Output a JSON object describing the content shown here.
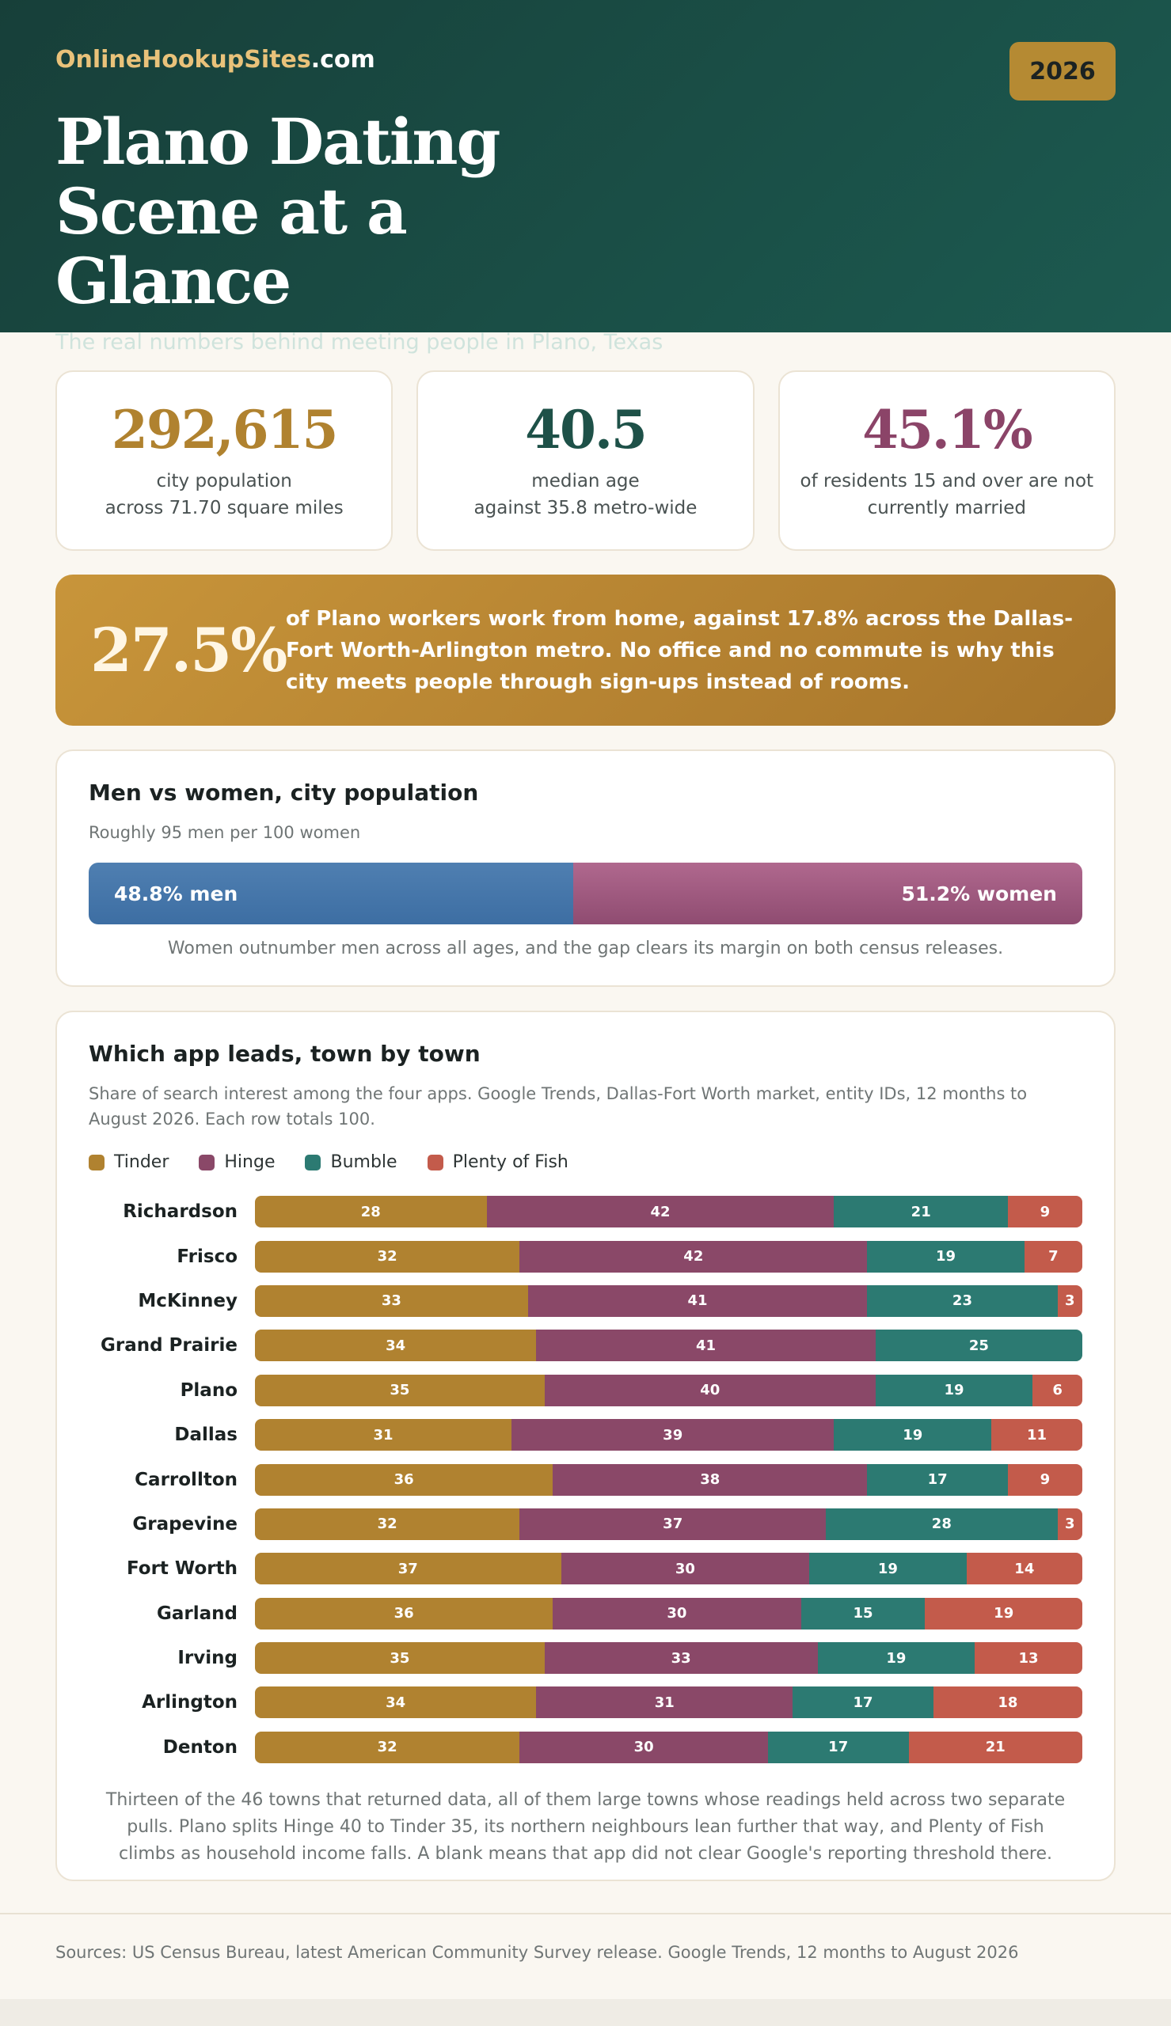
{
  "header": {
    "brand_main": "OnlineHookupSites",
    "brand_suffix": ".com",
    "year": "2026",
    "title": "Plano Dating Scene at a Glance",
    "subtitle": "The real numbers behind meeting people in Plano, Texas"
  },
  "stats": [
    {
      "value": "292,615",
      "line1": "city population",
      "line2": "across 71.70 square miles",
      "color": "#b0822f"
    },
    {
      "value": "40.5",
      "line1": "median age",
      "line2": "against 35.8 metro-wide",
      "color": "#1e5148"
    },
    {
      "value": "45.1%",
      "line1": "of residents 15 and over are not",
      "line2": "currently married",
      "color": "#8b4468"
    }
  ],
  "highlight": {
    "value": "27.5%",
    "text": "of Plano workers work from home, against 17.8% across the Dallas-Fort Worth-Arlington metro. No office and no commute is why this city meets people through sign-ups instead of rooms."
  },
  "gender": {
    "title": "Men vs women, city population",
    "subtitle": "Roughly 95 men per 100 women",
    "men_pct": 48.8,
    "women_pct": 51.2,
    "men_label": "48.8% men",
    "women_label": "51.2% women",
    "note": "Women outnumber men across all ages, and the gap clears its margin on both census releases."
  },
  "apps": {
    "title": "Which app leads, town by town",
    "subtitle": "Share of search interest among the four apps. Google Trends, Dallas-Fort Worth market, entity IDs, 12 months to August 2026. Each row totals 100.",
    "note": "Thirteen of the 46 towns that returned data, all of them large towns whose readings held across two separate pulls. Plano splits Hinge 40 to Tinder 35, its northern neighbours lean further that way, and Plenty of Fish climbs as household income falls. A blank means that app did not clear Google's reporting threshold there."
  },
  "chart_data": {
    "type": "bar",
    "orientation": "horizontal",
    "stacked": true,
    "categories": [
      "Richardson",
      "Frisco",
      "McKinney",
      "Grand Prairie",
      "Plano",
      "Dallas",
      "Carrollton",
      "Grapevine",
      "Fort Worth",
      "Garland",
      "Irving",
      "Arlington",
      "Denton"
    ],
    "series": [
      {
        "name": "Tinder",
        "color": "#b08230",
        "values": [
          28,
          32,
          33,
          34,
          35,
          31,
          36,
          32,
          37,
          36,
          35,
          34,
          32
        ]
      },
      {
        "name": "Hinge",
        "color": "#8a4868",
        "values": [
          42,
          42,
          41,
          41,
          40,
          39,
          38,
          37,
          30,
          30,
          33,
          31,
          30
        ]
      },
      {
        "name": "Bumble",
        "color": "#2c7a72",
        "values": [
          21,
          19,
          23,
          25,
          19,
          19,
          17,
          28,
          19,
          15,
          19,
          17,
          17
        ]
      },
      {
        "name": "Plenty of Fish",
        "color": "#c35b4b",
        "values": [
          9,
          7,
          3,
          null,
          6,
          11,
          9,
          3,
          14,
          19,
          13,
          18,
          21
        ]
      }
    ],
    "xlim": [
      0,
      100
    ],
    "legend": "top-left"
  },
  "footer": {
    "sources": "Sources: US Census Bureau, latest American Community Survey release. Google Trends, 12 months to August 2026"
  }
}
